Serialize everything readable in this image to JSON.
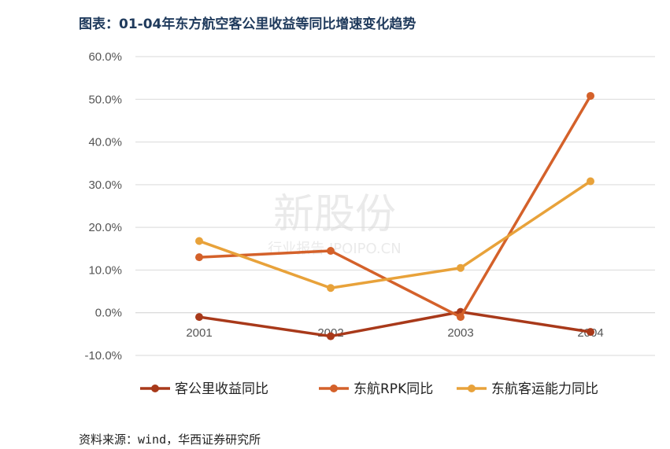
{
  "title": "图表：01-04年东方航空客公里收益等同比增速变化趋势",
  "source": "资料来源：wind，华西证券研究所",
  "watermark": {
    "main": "新股份",
    "sub": "行业报告 IPOIPO.CN"
  },
  "chart_data": {
    "type": "line",
    "categories": [
      "2001",
      "2002",
      "2003",
      "2004"
    ],
    "ylim": [
      -10,
      60
    ],
    "yticks": [
      -10,
      0,
      10,
      20,
      30,
      40,
      50,
      60
    ],
    "ytick_labels": [
      "-10.0%",
      "0.0%",
      "10.0%",
      "20.0%",
      "30.0%",
      "40.0%",
      "50.0%",
      "60.0%"
    ],
    "grid": true,
    "legend_position": "bottom",
    "series": [
      {
        "name": "客公里收益同比",
        "color": "#a8391a",
        "values": [
          -1.0,
          -5.5,
          0.2,
          -4.5
        ]
      },
      {
        "name": "东航RPK同比",
        "color": "#d4612a",
        "values": [
          13.0,
          14.5,
          -1.0,
          50.8
        ]
      },
      {
        "name": "东航客运能力同比",
        "color": "#e8a23a",
        "values": [
          16.8,
          5.8,
          10.5,
          30.8
        ]
      }
    ]
  }
}
